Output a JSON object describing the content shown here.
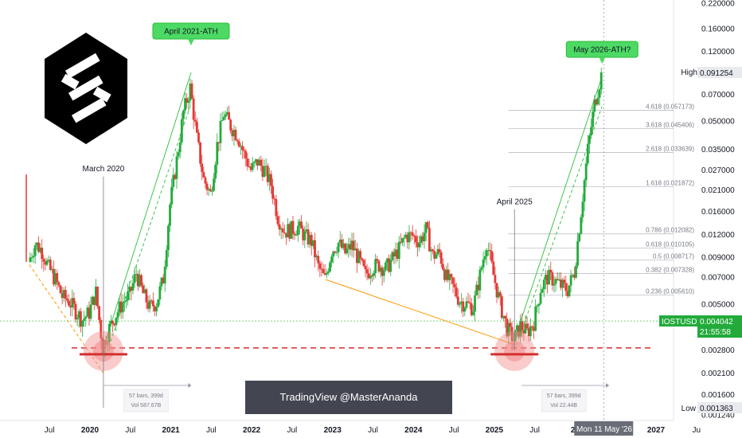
{
  "chart_data": {
    "type": "candlestick",
    "symbol_tag": "IOSTUSDT",
    "price_tag": "0.004042",
    "countdown_tag": "21:55:58",
    "high_label": "High",
    "high_value": "0.091254",
    "low_label": "Low",
    "low_value": "0.001363",
    "crosshair_date": "Mon 11 May '26",
    "y_ticks": [
      {
        "label": "0.220000",
        "value": 0.22
      },
      {
        "label": "0.160000",
        "value": 0.16
      },
      {
        "label": "0.120000",
        "value": 0.12
      },
      {
        "label": "0.070000",
        "value": 0.07
      },
      {
        "label": "0.050000",
        "value": 0.05
      },
      {
        "label": "0.035000",
        "value": 0.035
      },
      {
        "label": "0.027000",
        "value": 0.027
      },
      {
        "label": "0.021000",
        "value": 0.021
      },
      {
        "label": "0.016000",
        "value": 0.016
      },
      {
        "label": "0.012000",
        "value": 0.012
      },
      {
        "label": "0.009000",
        "value": 0.009
      },
      {
        "label": "0.007000",
        "value": 0.007
      },
      {
        "label": "0.005000",
        "value": 0.005
      },
      {
        "label": "0.003800",
        "value": 0.0038
      },
      {
        "label": "0.002800",
        "value": 0.0028
      },
      {
        "label": "0.002100",
        "value": 0.0021
      },
      {
        "label": "0.001600",
        "value": 0.0016
      },
      {
        "label": "0.001240",
        "value": 0.00124
      }
    ],
    "x_ticks": [
      {
        "label": "Jul",
        "date": "2019-07",
        "bold": false
      },
      {
        "label": "2020",
        "date": "2020-01",
        "bold": true
      },
      {
        "label": "Jul",
        "date": "2020-07",
        "bold": false
      },
      {
        "label": "2021",
        "date": "2021-01",
        "bold": true
      },
      {
        "label": "Jul",
        "date": "2021-07",
        "bold": false
      },
      {
        "label": "2022",
        "date": "2022-01",
        "bold": true
      },
      {
        "label": "Jul",
        "date": "2022-07",
        "bold": false
      },
      {
        "label": "2023",
        "date": "2023-01",
        "bold": true
      },
      {
        "label": "Jul",
        "date": "2023-07",
        "bold": false
      },
      {
        "label": "2024",
        "date": "2024-01",
        "bold": true
      },
      {
        "label": "Jul",
        "date": "2024-07",
        "bold": false
      },
      {
        "label": "2025",
        "date": "2025-01",
        "bold": true
      },
      {
        "label": "Jul",
        "date": "2025-07",
        "bold": false
      },
      {
        "label": "20",
        "date": "2026-01",
        "bold": true
      },
      {
        "label": "2027",
        "date": "2027-01",
        "bold": true
      },
      {
        "label": "Ju",
        "date": "2027-07",
        "bold": false
      }
    ],
    "fib_levels": [
      {
        "label": "4.618 (0.057173)",
        "value": 0.057173
      },
      {
        "label": "3.618 (0.045406)",
        "value": 0.045406
      },
      {
        "label": "2.618 (0.033639)",
        "value": 0.033639
      },
      {
        "label": "1.618 (0.021872)",
        "value": 0.021872
      },
      {
        "label": "0.786 (0.012082)",
        "value": 0.012082
      },
      {
        "label": "0.618 (0.010105)",
        "value": 0.010105
      },
      {
        "label": "0.5 (0.008717)",
        "value": 0.008717
      },
      {
        "label": "0.382 (0.007328)",
        "value": 0.007328
      },
      {
        "label": "0.236 (0.005610)",
        "value": 0.00561
      }
    ],
    "support_level": 0.00288,
    "current_price": 0.004042,
    "series": [
      {
        "name": "price",
        "points": [
          [
            "2019-04",
            0.0085
          ],
          [
            "2019-05",
            0.0107
          ],
          [
            "2019-06",
            0.0098
          ],
          [
            "2019-07",
            0.0079
          ],
          [
            "2019-08",
            0.0068
          ],
          [
            "2019-09",
            0.0055
          ],
          [
            "2019-10",
            0.0052
          ],
          [
            "2019-11",
            0.0046
          ],
          [
            "2019-12",
            0.0041
          ],
          [
            "2020-01",
            0.0045
          ],
          [
            "2020-02",
            0.0058
          ],
          [
            "2020-03",
            0.0029
          ],
          [
            "2020-04",
            0.0037
          ],
          [
            "2020-05",
            0.0044
          ],
          [
            "2020-06",
            0.0051
          ],
          [
            "2020-07",
            0.0056
          ],
          [
            "2020-08",
            0.0074
          ],
          [
            "2020-09",
            0.0057
          ],
          [
            "2020-10",
            0.0048
          ],
          [
            "2020-11",
            0.0051
          ],
          [
            "2020-12",
            0.0069
          ],
          [
            "2021-01",
            0.0175
          ],
          [
            "2021-02",
            0.0305
          ],
          [
            "2021-03",
            0.056
          ],
          [
            "2021-04",
            0.076
          ],
          [
            "2021-05",
            0.04
          ],
          [
            "2021-06",
            0.024
          ],
          [
            "2021-07",
            0.02
          ],
          [
            "2021-08",
            0.037
          ],
          [
            "2021-09",
            0.055
          ],
          [
            "2021-10",
            0.047
          ],
          [
            "2021-11",
            0.042
          ],
          [
            "2021-12",
            0.033
          ],
          [
            "2022-01",
            0.027
          ],
          [
            "2022-02",
            0.03
          ],
          [
            "2022-03",
            0.027
          ],
          [
            "2022-04",
            0.0225
          ],
          [
            "2022-05",
            0.015
          ],
          [
            "2022-06",
            0.0125
          ],
          [
            "2022-07",
            0.0128
          ],
          [
            "2022-08",
            0.0132
          ],
          [
            "2022-09",
            0.0118
          ],
          [
            "2022-10",
            0.011
          ],
          [
            "2022-11",
            0.008
          ],
          [
            "2022-12",
            0.0068
          ],
          [
            "2023-01",
            0.0098
          ],
          [
            "2023-02",
            0.0108
          ],
          [
            "2023-03",
            0.0095
          ],
          [
            "2023-04",
            0.0105
          ],
          [
            "2023-05",
            0.0088
          ],
          [
            "2023-06",
            0.0072
          ],
          [
            "2023-07",
            0.008
          ],
          [
            "2023-08",
            0.0082
          ],
          [
            "2023-09",
            0.0078
          ],
          [
            "2023-10",
            0.0088
          ],
          [
            "2023-11",
            0.01
          ],
          [
            "2023-12",
            0.0118
          ],
          [
            "2024-01",
            0.0118
          ],
          [
            "2024-02",
            0.011
          ],
          [
            "2024-03",
            0.0128
          ],
          [
            "2024-04",
            0.0092
          ],
          [
            "2024-05",
            0.0095
          ],
          [
            "2024-06",
            0.007
          ],
          [
            "2024-07",
            0.0062
          ],
          [
            "2024-08",
            0.0052
          ],
          [
            "2024-09",
            0.005
          ],
          [
            "2024-10",
            0.0048
          ],
          [
            "2024-11",
            0.0072
          ],
          [
            "2024-12",
            0.011
          ],
          [
            "2025-01",
            0.0072
          ],
          [
            "2025-02",
            0.005
          ],
          [
            "2025-03",
            0.0037
          ],
          [
            "2025-04",
            0.0032
          ],
          [
            "2025-05",
            0.0038
          ],
          [
            "2025-06",
            0.0035
          ],
          [
            "2025-07",
            0.004
          ],
          [
            "2025-08",
            0.0061
          ],
          [
            "2025-09",
            0.007
          ],
          [
            "2025-10",
            0.0068
          ],
          [
            "2025-11",
            0.0063
          ],
          [
            "2025-12",
            0.006
          ],
          [
            "2026-01",
            0.0075
          ],
          [
            "2026-02",
            0.016
          ],
          [
            "2026-03",
            0.035
          ],
          [
            "2026-04",
            0.062
          ],
          [
            "2026-05",
            0.089
          ]
        ]
      }
    ],
    "annotations": [
      {
        "text": "March 2020",
        "date": "2020-03",
        "price": 0.0275
      },
      {
        "text": "April 2021-ATH",
        "date": "2021-04",
        "price": 0.155
      },
      {
        "text": "April 2025",
        "date": "2025-04",
        "price": 0.0182
      },
      {
        "text": "May 2026-ATH?",
        "date": "2026-05",
        "price": 0.123
      }
    ],
    "measure_boxes": [
      {
        "line1": "57 bars, 399d",
        "line2": "Vol 587.67B",
        "date": "2020-04"
      },
      {
        "line1": "57 bars, 399d",
        "line2": "Vol 22.44B",
        "date": "2025-06"
      }
    ],
    "watermark": "TradingView @MasterAnanda",
    "colors": {
      "up": "#22ab3b",
      "down": "#e53935",
      "accent_green": "#2ebd3a",
      "support": "#d32f2f",
      "fib": "#b2b5be",
      "trend": "#ff9800"
    }
  }
}
